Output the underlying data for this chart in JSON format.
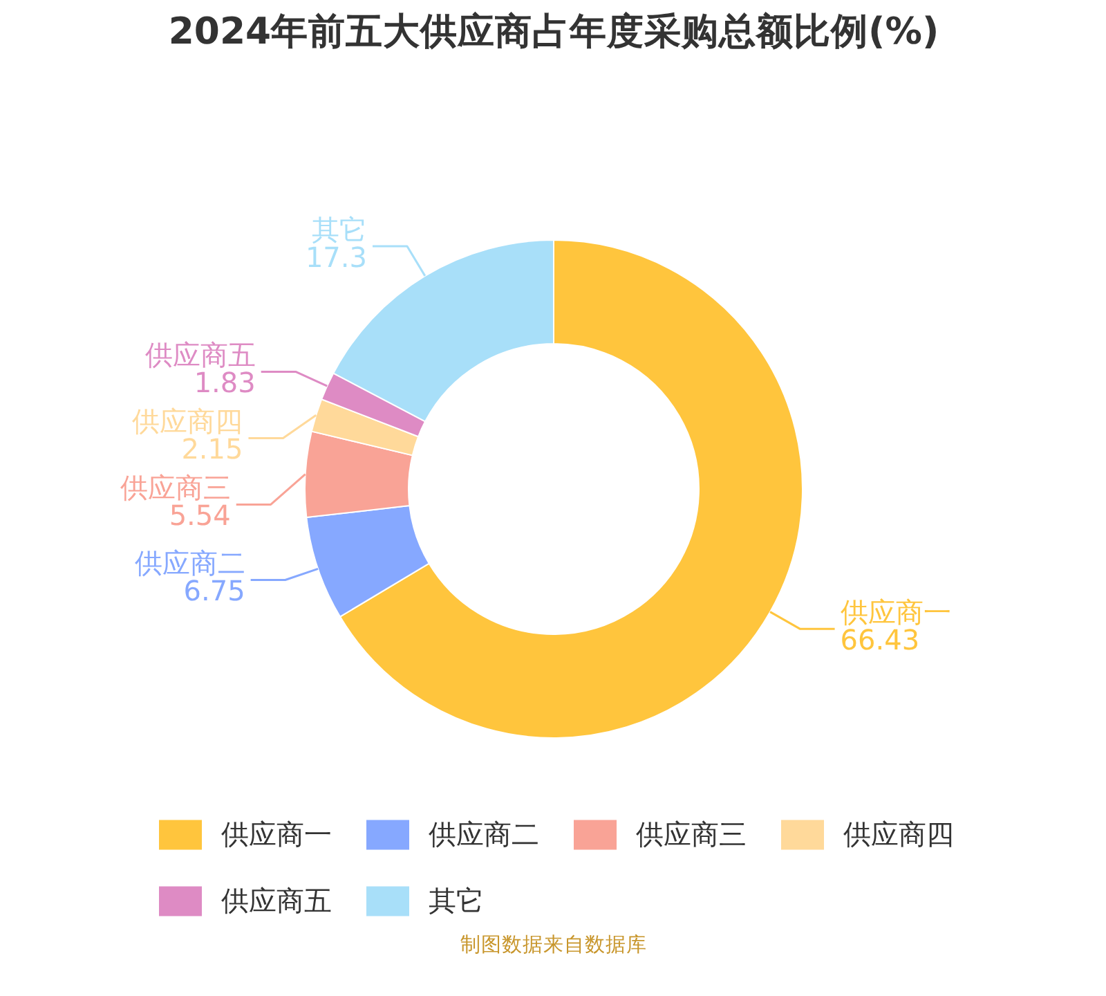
{
  "chart_data": {
    "type": "donut",
    "title": "2024年前五大供应商占年度采购总额比例(%)",
    "categories": [
      "供应商一",
      "供应商二",
      "供应商三",
      "供应商四",
      "供应商五",
      "其它"
    ],
    "values": [
      66.43,
      6.75,
      5.54,
      2.15,
      1.83,
      17.3
    ],
    "colors": [
      "#ffc53d",
      "#86a8ff",
      "#f9a396",
      "#ffd99a",
      "#de8bc4",
      "#a8dff9"
    ],
    "data_labels": true,
    "legend": "bottom",
    "annotations": [
      "制图数据来自数据库"
    ]
  }
}
